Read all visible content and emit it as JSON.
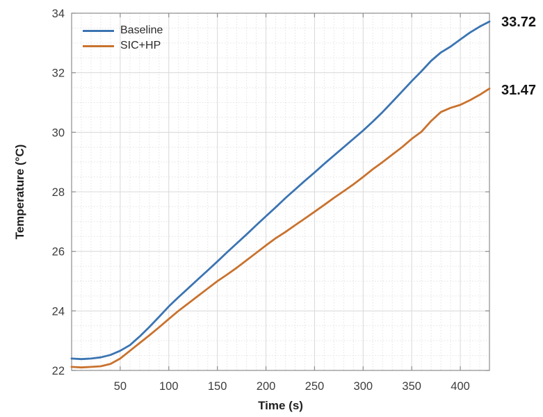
{
  "chart_data": {
    "type": "line",
    "title": "",
    "xlabel": "Time (s)",
    "ylabel": "Temperature (°C)",
    "xlim": [
      0,
      430
    ],
    "ylim": [
      22,
      34
    ],
    "xticks": [
      50,
      100,
      150,
      200,
      250,
      300,
      350,
      400
    ],
    "yticks": [
      22,
      24,
      26,
      28,
      30,
      32,
      34
    ],
    "minor_x_step": 10,
    "minor_y_step": 0.5,
    "grid": "major solid gray, minor dotted, box on, ticks mirrored on all sides",
    "legend_position": "top-left inside plot, no border",
    "axis_color": "#8c8c8c",
    "major_grid_color": "#d8d8d8",
    "minor_grid_color": "#e2e2e2",
    "x": [
      0,
      10,
      20,
      30,
      40,
      50,
      60,
      70,
      80,
      90,
      100,
      110,
      120,
      130,
      140,
      150,
      160,
      170,
      180,
      190,
      200,
      210,
      220,
      230,
      240,
      250,
      260,
      270,
      280,
      290,
      300,
      310,
      320,
      330,
      340,
      350,
      360,
      370,
      380,
      390,
      400,
      410,
      420,
      430
    ],
    "series": [
      {
        "name": "Baseline",
        "color": "#3b74b2",
        "end_label": "33.72",
        "end_value": 33.72,
        "values": [
          22.4,
          22.38,
          22.4,
          22.44,
          22.52,
          22.66,
          22.85,
          23.14,
          23.46,
          23.8,
          24.15,
          24.46,
          24.76,
          25.06,
          25.36,
          25.66,
          25.97,
          26.27,
          26.57,
          26.88,
          27.18,
          27.48,
          27.79,
          28.08,
          28.37,
          28.65,
          28.94,
          29.22,
          29.5,
          29.78,
          30.06,
          30.36,
          30.68,
          31.02,
          31.37,
          31.72,
          32.05,
          32.4,
          32.68,
          32.88,
          33.12,
          33.35,
          33.55,
          33.72
        ]
      },
      {
        "name": "SIC+HP",
        "color": "#c9722e",
        "end_label": "31.47",
        "end_value": 31.47,
        "values": [
          22.12,
          22.1,
          22.12,
          22.14,
          22.22,
          22.4,
          22.66,
          22.92,
          23.18,
          23.45,
          23.73,
          24.0,
          24.25,
          24.5,
          24.75,
          25.0,
          25.22,
          25.45,
          25.7,
          25.95,
          26.2,
          26.44,
          26.65,
          26.88,
          27.1,
          27.33,
          27.56,
          27.8,
          28.02,
          28.25,
          28.5,
          28.76,
          29.0,
          29.25,
          29.5,
          29.78,
          30.02,
          30.38,
          30.68,
          30.82,
          30.92,
          31.08,
          31.26,
          31.47
        ]
      }
    ]
  }
}
